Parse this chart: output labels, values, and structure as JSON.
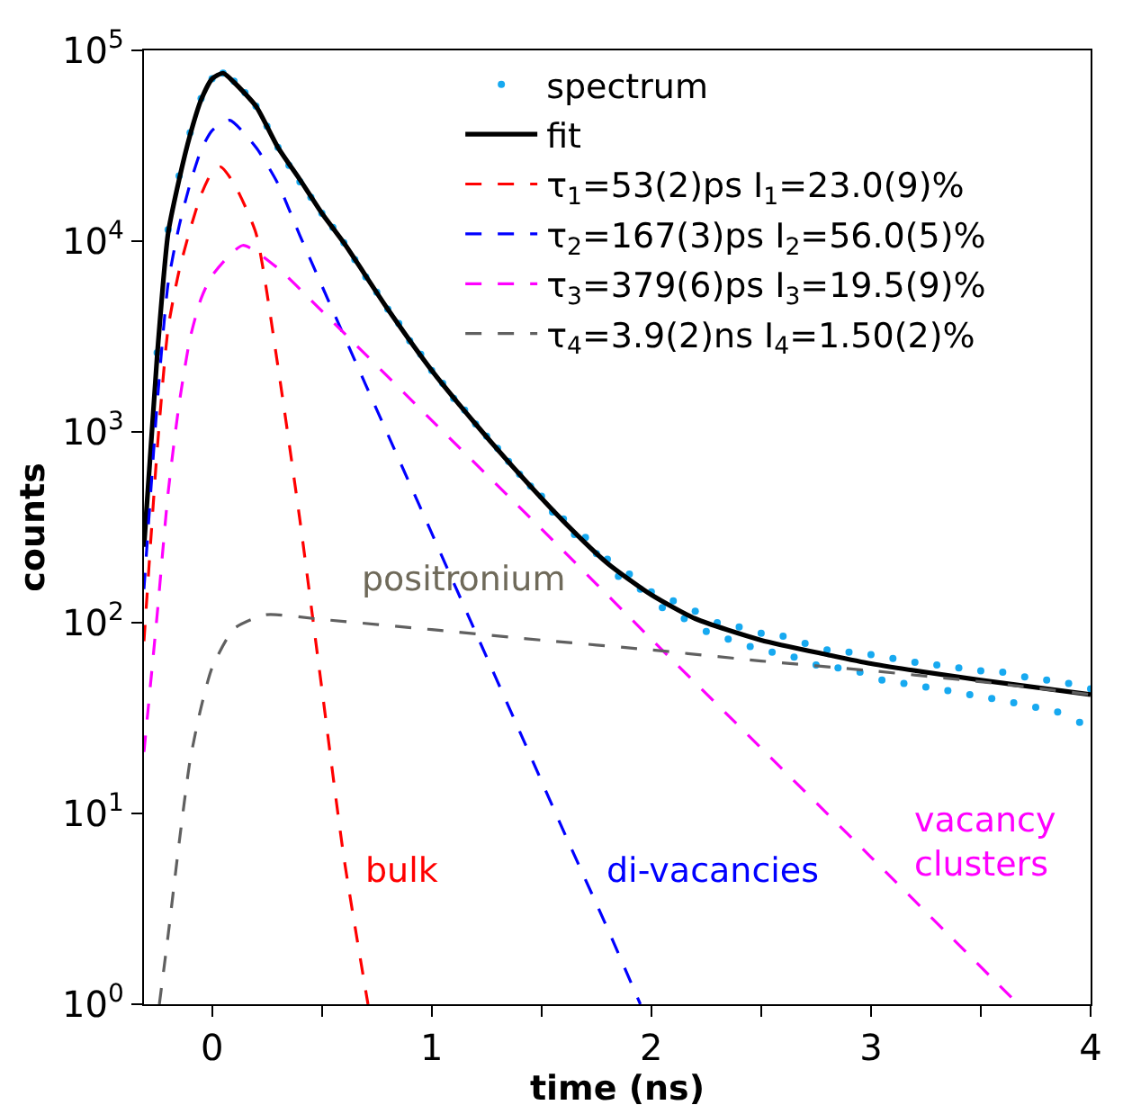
{
  "chart_data": {
    "type": "line",
    "xlabel": "time (ns)",
    "ylabel": "counts",
    "log": "y",
    "legend": "top right",
    "xlim": [
      -0.31,
      4.0
    ],
    "xticks": [
      0,
      {
        "value": 0.5,
        "label": null
      },
      1,
      {
        "value": 1.5,
        "label": null
      },
      2,
      {
        "value": 2.5,
        "label": null
      },
      3,
      {
        "value": 3.5,
        "label": null
      },
      4
    ],
    "ylim": [
      1,
      100000
    ],
    "yticks": [
      {
        "value": 1,
        "label": "10$^{0}$"
      },
      {
        "value": 10,
        "label": "10$^{1}$"
      },
      {
        "value": 100,
        "label": "10$^{2}$"
      },
      {
        "value": 1000,
        "label": "10$^{3}$"
      },
      {
        "value": 10000,
        "label": "10$^{4}$"
      },
      {
        "value": 100000,
        "label": "10$^{5}$"
      }
    ],
    "series": [
      {
        "type": "scatter",
        "name": "spectrum",
        "color": "#17a9f0",
        "marker": "circle",
        "x": [
          -0.25,
          -0.2,
          -0.15,
          -0.1,
          -0.05,
          0,
          0.05,
          0.1,
          0.15,
          0.2,
          0.25,
          0.3,
          0.35,
          0.4,
          0.45,
          0.5,
          0.55,
          0.6,
          0.65,
          0.7,
          0.75,
          0.8,
          0.85,
          0.9,
          0.95,
          1.0,
          1.05,
          1.1,
          1.15,
          1.2,
          1.25,
          1.3,
          1.35,
          1.4,
          1.45,
          1.5,
          1.55,
          1.6,
          1.65,
          1.7,
          1.75,
          1.8,
          1.85,
          1.9,
          1.95,
          2.0,
          2.05,
          2.1,
          2.15,
          2.2,
          2.25,
          2.3,
          2.35,
          2.4,
          2.45,
          2.5,
          2.55,
          2.6,
          2.65,
          2.7,
          2.75,
          2.8,
          2.85,
          2.9,
          2.95,
          3.0,
          3.05,
          3.1,
          3.15,
          3.2,
          3.25,
          3.3,
          3.35,
          3.4,
          3.45,
          3.5,
          3.55,
          3.6,
          3.65,
          3.7,
          3.75,
          3.8,
          3.85,
          3.9,
          3.95,
          4.0
        ],
        "values": [
          2600,
          11500,
          22000,
          37000,
          56000,
          71000,
          76000,
          69000,
          60000,
          51000,
          40000,
          31000,
          25000,
          20500,
          17000,
          14000,
          11800,
          9800,
          8000,
          6500,
          5400,
          4400,
          3700,
          3000,
          2550,
          2100,
          1800,
          1500,
          1300,
          1100,
          950,
          820,
          700,
          600,
          520,
          460,
          380,
          350,
          290,
          280,
          230,
          215,
          175,
          180,
          150,
          145,
          120,
          130,
          105,
          115,
          90,
          100,
          82,
          95,
          75,
          88,
          70,
          85,
          66,
          78,
          60,
          72,
          58,
          70,
          55,
          68,
          50,
          65,
          48,
          62,
          46,
          60,
          44,
          58,
          42,
          56,
          40,
          55,
          38,
          52,
          36,
          50,
          34,
          48,
          30,
          45
        ]
      },
      {
        "name": "fit",
        "color": "#000000",
        "line_style": "solid",
        "marker": "none",
        "x": [
          -0.31,
          -0.25,
          -0.2,
          -0.15,
          -0.1,
          -0.05,
          0,
          0.05,
          0.1,
          0.2,
          0.3,
          0.4,
          0.5,
          0.6,
          0.8,
          1.0,
          1.2,
          1.4,
          1.6,
          1.8,
          2.0,
          2.2,
          2.5,
          2.8,
          3.0,
          3.5,
          4.0
        ],
        "values": [
          250,
          2500,
          11000,
          21000,
          36000,
          55000,
          71000,
          76000,
          68000,
          51000,
          31000,
          21000,
          14000,
          9800,
          4400,
          2100,
          1100,
          600,
          340,
          205,
          140,
          105,
          81,
          68,
          61,
          50,
          42
        ]
      },
      {
        "name": "τ$_{1}$=53(2)ps I$_{1}$=23.0(9)%",
        "color": "#ff0000",
        "line_style": "dashed",
        "marker": "none",
        "x": [
          -0.31,
          -0.25,
          -0.2,
          -0.15,
          -0.1,
          -0.05,
          0,
          0.04,
          0.1,
          0.2,
          0.3,
          0.4,
          0.5,
          0.6,
          0.71
        ],
        "values": [
          80,
          800,
          3500,
          7000,
          11500,
          17500,
          23000,
          24500,
          20000,
          11000,
          2200,
          345,
          45,
          5.9,
          1
        ]
      },
      {
        "name": "τ$_{2}$=167(3)ps I$_{2}$=56.0(5)%",
        "color": "#0000ff",
        "line_style": "dashed",
        "marker": "none",
        "x": [
          -0.31,
          -0.25,
          -0.2,
          -0.15,
          -0.1,
          -0.05,
          0,
          0.08,
          0.2,
          0.3,
          0.4,
          0.6,
          0.8,
          1.0,
          1.2,
          1.4,
          1.6,
          1.8,
          1.95
        ],
        "values": [
          150,
          1400,
          6000,
          12000,
          20000,
          30000,
          38000,
          43000,
          31000,
          20000,
          10700,
          3200,
          970,
          295,
          89,
          27,
          8.1,
          2.5,
          1
        ]
      },
      {
        "name": "τ$_{3}$=379(6)ps I$_{3}$=19.5(9)%",
        "color": "#ff00ff",
        "line_style": "dashed",
        "marker": "none",
        "x": [
          -0.31,
          -0.25,
          -0.2,
          -0.15,
          -0.1,
          -0.05,
          0,
          0.14,
          0.3,
          0.5,
          1.0,
          1.5,
          2.0,
          2.5,
          3.0,
          3.67
        ],
        "values": [
          21,
          110,
          480,
          1400,
          3100,
          5000,
          6600,
          9500,
          7200,
          4300,
          1150,
          310,
          82,
          22,
          5.9,
          1
        ]
      },
      {
        "name": "τ$_{4}$=3.9(2)ns I$_{4}$=1.50(2)%",
        "color": "#606060",
        "line_style": "dashed",
        "marker": "none",
        "x": [
          -0.24,
          -0.2,
          -0.15,
          -0.1,
          -0.05,
          0,
          0.1,
          0.245,
          0.5,
          1.0,
          1.5,
          2.0,
          2.5,
          3.0,
          3.5,
          4.0
        ],
        "values": [
          1,
          2.3,
          7,
          19,
          36,
          58,
          93,
          110,
          104,
          92,
          81,
          72,
          63,
          56,
          49,
          42
        ]
      }
    ],
    "annotations": [
      "positronium",
      "bulk",
      "di-vacancies",
      "vacancy\nclusters"
    ]
  }
}
